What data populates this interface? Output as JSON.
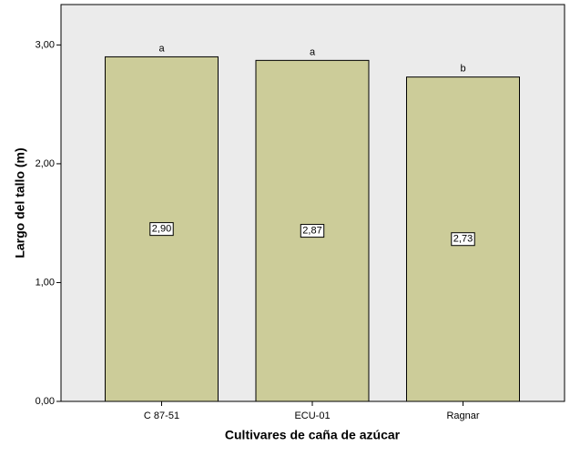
{
  "chart_data": {
    "type": "bar",
    "x_label": "Cultivares de caña de azúcar",
    "y_label": "Largo del tallo (m)",
    "categories": [
      "C 87-51",
      "ECU-01",
      "Ragnar"
    ],
    "values": [
      2.9,
      2.87,
      2.73
    ],
    "value_labels": [
      "2,90",
      "2,87",
      "2,73"
    ],
    "annotations": [
      "a",
      "a",
      "b"
    ],
    "color": "#cccc99",
    "ylim": [
      0,
      3.34
    ],
    "yticks": [
      {
        "value": 0,
        "label": "0,00"
      },
      {
        "value": 1,
        "label": "1,00"
      },
      {
        "value": 2,
        "label": "2,00"
      },
      {
        "value": 3,
        "label": "3,00"
      }
    ],
    "grid": false
  }
}
